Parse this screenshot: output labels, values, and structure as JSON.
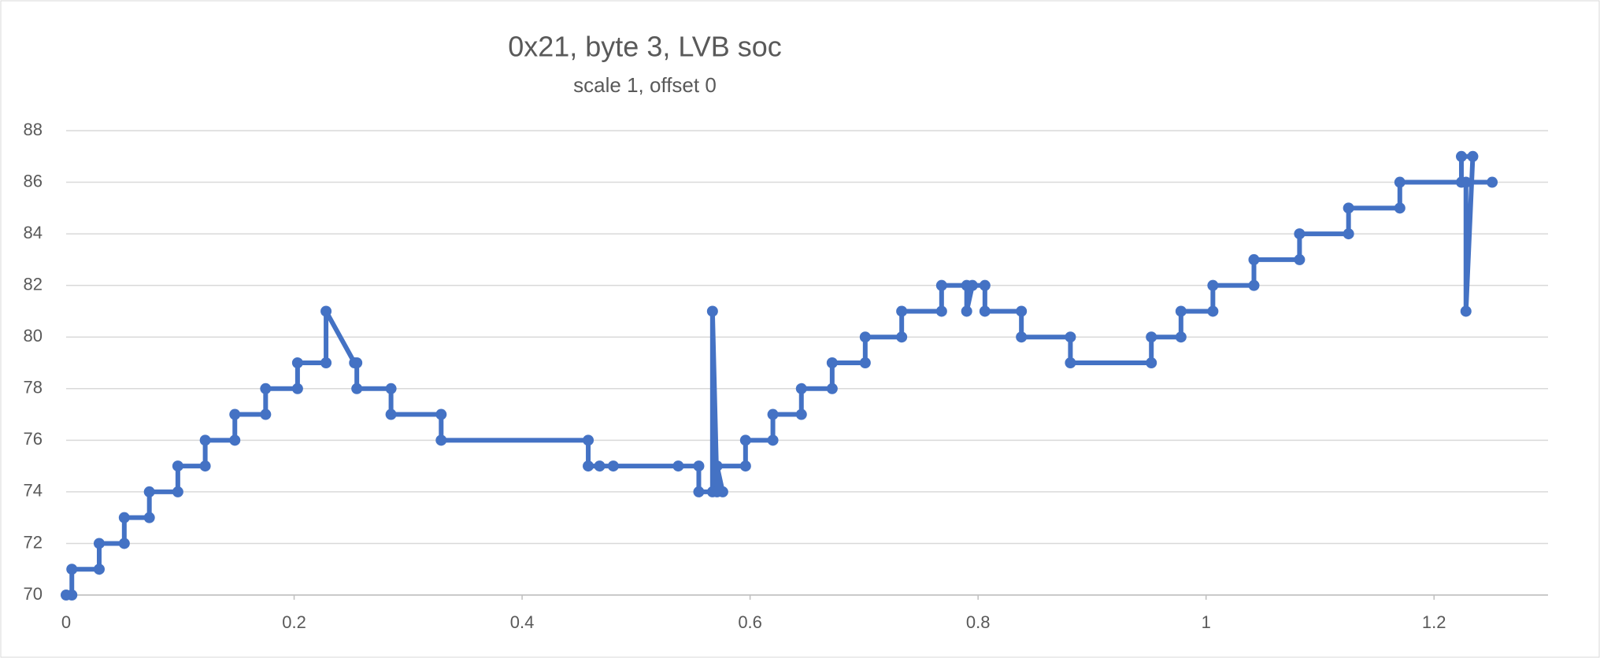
{
  "chart_data": {
    "type": "scatter-line",
    "title": "0x21, byte 3, LVB soc",
    "subtitle": "scale 1, offset 0",
    "color": "#4472c4",
    "grid": true,
    "xlim": [
      0,
      1.3
    ],
    "xticks": [
      0,
      0.2,
      0.4,
      0.6,
      0.8,
      1,
      1.2
    ],
    "ylim": [
      70,
      88
    ],
    "yticks": [
      70,
      72,
      74,
      76,
      78,
      80,
      82,
      84,
      86,
      88
    ],
    "x": [
      0,
      0.005,
      0.005,
      0.029,
      0.029,
      0.051,
      0.051,
      0.073,
      0.073,
      0.098,
      0.098,
      0.122,
      0.122,
      0.148,
      0.148,
      0.175,
      0.175,
      0.203,
      0.203,
      0.228,
      0.228,
      0.253,
      0.255,
      0.255,
      0.285,
      0.285,
      0.329,
      0.329,
      0.458,
      0.458,
      0.468,
      0.48,
      0.537,
      0.555,
      0.555,
      0.567,
      0.567,
      0.571,
      0.576,
      0.571,
      0.596,
      0.596,
      0.62,
      0.62,
      0.645,
      0.645,
      0.672,
      0.672,
      0.701,
      0.701,
      0.733,
      0.733,
      0.768,
      0.768,
      0.79,
      0.79,
      0.795,
      0.806,
      0.806,
      0.838,
      0.838,
      0.881,
      0.881,
      0.952,
      0.952,
      0.978,
      0.978,
      1.006,
      1.006,
      1.042,
      1.042,
      1.082,
      1.082,
      1.125,
      1.125,
      1.17,
      1.17,
      1.224,
      1.224,
      1.234,
      1.228,
      1.228,
      1.251
    ],
    "values": [
      70,
      70,
      71,
      71,
      72,
      72,
      73,
      73,
      74,
      74,
      75,
      75,
      76,
      76,
      77,
      77,
      78,
      78,
      79,
      79,
      81,
      79,
      79,
      78,
      78,
      77,
      77,
      76,
      76,
      75,
      75,
      75,
      75,
      75,
      74,
      74,
      81,
      74,
      74,
      75,
      75,
      76,
      76,
      77,
      77,
      78,
      78,
      79,
      79,
      80,
      80,
      81,
      81,
      82,
      82,
      81,
      82,
      82,
      81,
      81,
      80,
      80,
      79,
      79,
      80,
      80,
      81,
      81,
      82,
      82,
      83,
      83,
      84,
      84,
      85,
      85,
      86,
      86,
      87,
      87,
      81,
      86,
      86
    ]
  }
}
